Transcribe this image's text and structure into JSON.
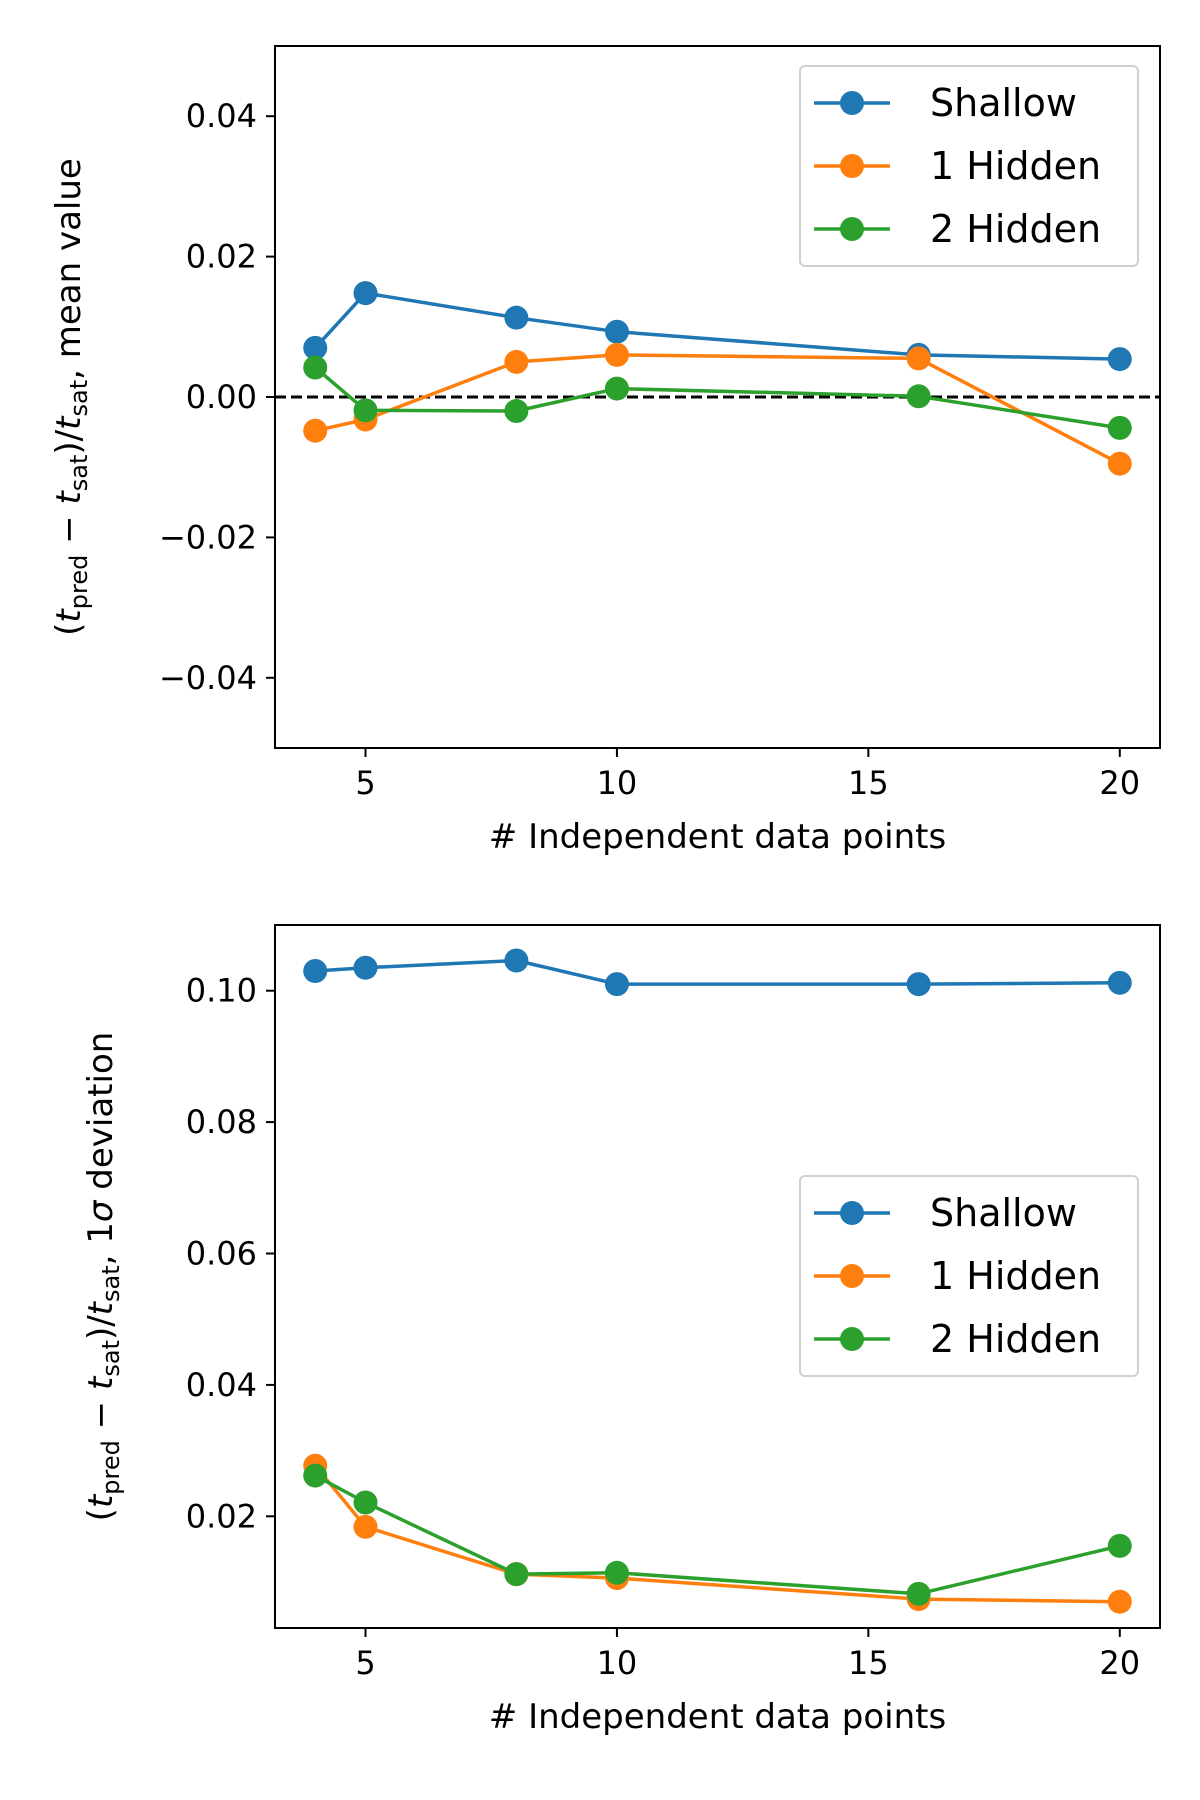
{
  "chart_data": [
    {
      "type": "line",
      "xlabel": "# Independent data points",
      "ylabel": {
        "open": "(",
        "t": "t",
        "pred": "pred",
        "minus": " − ",
        "sat": "sat",
        "close_slash": ")/",
        "tail": ", mean value"
      },
      "xlim": [
        3.2,
        20.8
      ],
      "ylim": [
        -0.05,
        0.05
      ],
      "xticks": [
        5,
        10,
        15,
        20
      ],
      "xtick_labels": [
        "5",
        "10",
        "15",
        "20"
      ],
      "yticks": [
        -0.04,
        -0.02,
        0.0,
        0.02,
        0.04
      ],
      "ytick_labels": [
        "−0.04",
        "−0.02",
        "0.00",
        "0.02",
        "0.04"
      ],
      "reference_line": {
        "y": 0.0,
        "style": "dashed",
        "color": "#000000"
      },
      "legend": {
        "location": "top-right"
      },
      "series": [
        {
          "name": "Shallow",
          "color": "#1f77b4",
          "x": [
            4,
            5,
            8,
            10,
            16,
            20
          ],
          "y": [
            0.007,
            0.0148,
            0.0113,
            0.0093,
            0.006,
            0.0054
          ]
        },
        {
          "name": "1 Hidden",
          "color": "#ff7f0e",
          "x": [
            4,
            5,
            8,
            10,
            16,
            20
          ],
          "y": [
            -0.0048,
            -0.0032,
            0.005,
            0.006,
            0.0055,
            -0.0095
          ]
        },
        {
          "name": "2 Hidden",
          "color": "#2ca02c",
          "x": [
            4,
            5,
            8,
            10,
            16,
            20
          ],
          "y": [
            0.0042,
            -0.0019,
            -0.002,
            0.0012,
            0.0001,
            -0.0044
          ]
        }
      ]
    },
    {
      "type": "line",
      "xlabel": "# Independent data points",
      "ylabel": {
        "open": "(",
        "t": "t",
        "pred": "pred",
        "minus": " − ",
        "sat": "sat",
        "close_slash": ")/",
        "tail": ", 1",
        "sigma": "σ",
        "tail2": " deviation"
      },
      "xlim": [
        3.2,
        20.8
      ],
      "ylim": [
        0.003,
        0.11
      ],
      "xticks": [
        5,
        10,
        15,
        20
      ],
      "xtick_labels": [
        "5",
        "10",
        "15",
        "20"
      ],
      "yticks": [
        0.02,
        0.04,
        0.06,
        0.08,
        0.1
      ],
      "ytick_labels": [
        "0.02",
        "0.04",
        "0.06",
        "0.08",
        "0.10"
      ],
      "legend": {
        "location": "center-right"
      },
      "series": [
        {
          "name": "Shallow",
          "color": "#1f77b4",
          "x": [
            4,
            5,
            8,
            10,
            16,
            20
          ],
          "y": [
            0.103,
            0.1035,
            0.1046,
            0.101,
            0.101,
            0.1012
          ]
        },
        {
          "name": "1 Hidden",
          "color": "#ff7f0e",
          "x": [
            4,
            5,
            8,
            10,
            16,
            20
          ],
          "y": [
            0.0277,
            0.0184,
            0.0112,
            0.0106,
            0.0074,
            0.007
          ]
        },
        {
          "name": "2 Hidden",
          "color": "#2ca02c",
          "x": [
            4,
            5,
            8,
            10,
            16,
            20
          ],
          "y": [
            0.0262,
            0.0221,
            0.0112,
            0.0114,
            0.0082,
            0.0155
          ]
        }
      ]
    }
  ]
}
